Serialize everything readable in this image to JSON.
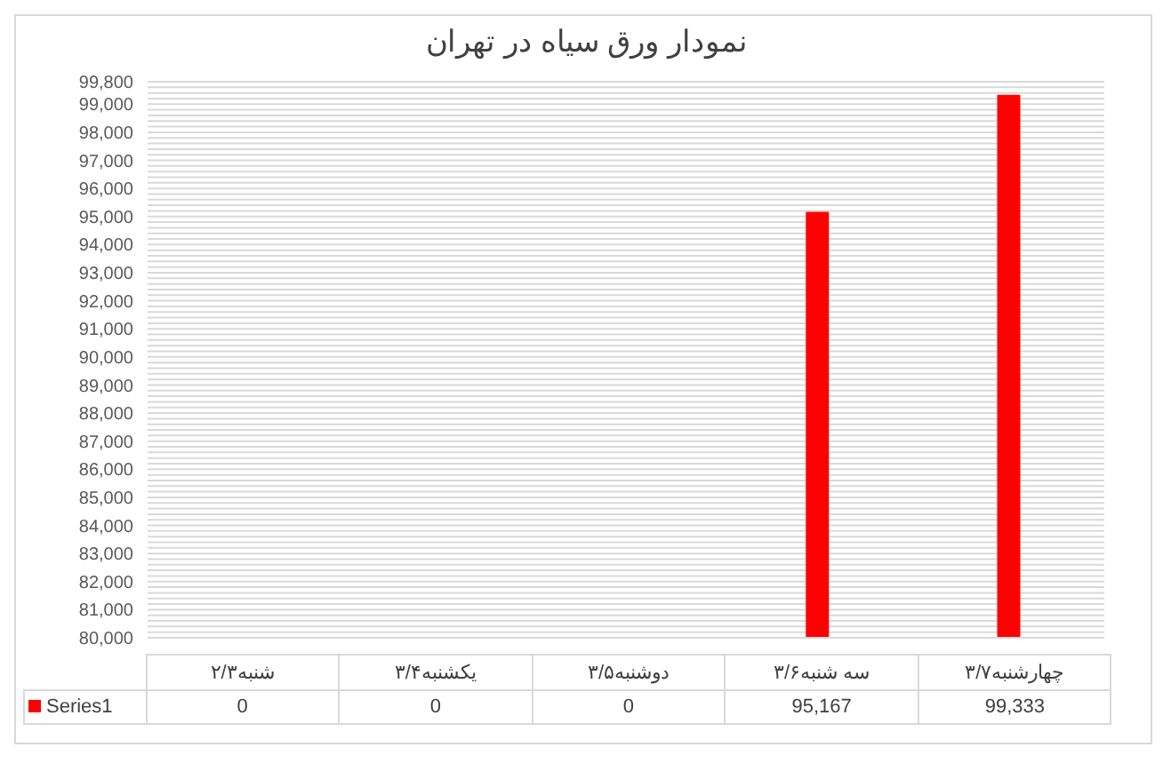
{
  "chart_data": {
    "type": "bar",
    "title": "نمودار ورق سیاه در تهران",
    "categories": [
      "شنبه۲/۳",
      "یکشنبه۳/۴",
      "دوشنبه۳/۵",
      "سه شنبه۳/۶",
      "چهارشنبه۳/۷"
    ],
    "series": [
      {
        "name": "Series1",
        "color": "#ff0000",
        "values": [
          null,
          null,
          null,
          95167,
          99333
        ],
        "value_labels": [
          "0",
          "0",
          "0",
          "95,167",
          "99,333"
        ]
      }
    ],
    "ylim": [
      80000,
      99800
    ],
    "yticks": [
      {
        "value": 80000,
        "label": "80,000"
      },
      {
        "value": 80200,
        "label": null
      },
      {
        "value": 80400,
        "label": null
      },
      {
        "value": 80600,
        "label": null
      },
      {
        "value": 80800,
        "label": null
      },
      {
        "value": 81000,
        "label": "81,000"
      },
      {
        "value": 81200,
        "label": null
      },
      {
        "value": 81400,
        "label": null
      },
      {
        "value": 81600,
        "label": null
      },
      {
        "value": 81800,
        "label": null
      },
      {
        "value": 82000,
        "label": "82,000"
      },
      {
        "value": 82200,
        "label": null
      },
      {
        "value": 82400,
        "label": null
      },
      {
        "value": 82600,
        "label": null
      },
      {
        "value": 82800,
        "label": null
      },
      {
        "value": 83000,
        "label": "83,000"
      },
      {
        "value": 83200,
        "label": null
      },
      {
        "value": 83400,
        "label": null
      },
      {
        "value": 83600,
        "label": null
      },
      {
        "value": 83800,
        "label": null
      },
      {
        "value": 84000,
        "label": "84,000"
      },
      {
        "value": 84200,
        "label": null
      },
      {
        "value": 84400,
        "label": null
      },
      {
        "value": 84600,
        "label": null
      },
      {
        "value": 84800,
        "label": null
      },
      {
        "value": 85000,
        "label": "85,000"
      },
      {
        "value": 85200,
        "label": null
      },
      {
        "value": 85400,
        "label": null
      },
      {
        "value": 85600,
        "label": null
      },
      {
        "value": 85800,
        "label": null
      },
      {
        "value": 86000,
        "label": "86,000"
      },
      {
        "value": 86200,
        "label": null
      },
      {
        "value": 86400,
        "label": null
      },
      {
        "value": 86600,
        "label": null
      },
      {
        "value": 86800,
        "label": null
      },
      {
        "value": 87000,
        "label": "87,000"
      },
      {
        "value": 87200,
        "label": null
      },
      {
        "value": 87400,
        "label": null
      },
      {
        "value": 87600,
        "label": null
      },
      {
        "value": 87800,
        "label": null
      },
      {
        "value": 88000,
        "label": "88,000"
      },
      {
        "value": 88200,
        "label": null
      },
      {
        "value": 88400,
        "label": null
      },
      {
        "value": 88600,
        "label": null
      },
      {
        "value": 88800,
        "label": null
      },
      {
        "value": 89000,
        "label": "89,000"
      },
      {
        "value": 89200,
        "label": null
      },
      {
        "value": 89400,
        "label": null
      },
      {
        "value": 89600,
        "label": null
      },
      {
        "value": 89800,
        "label": null
      },
      {
        "value": 90000,
        "label": "90,000"
      },
      {
        "value": 90200,
        "label": null
      },
      {
        "value": 90400,
        "label": null
      },
      {
        "value": 90600,
        "label": null
      },
      {
        "value": 90800,
        "label": null
      },
      {
        "value": 91000,
        "label": "91,000"
      },
      {
        "value": 91200,
        "label": null
      },
      {
        "value": 91400,
        "label": null
      },
      {
        "value": 91600,
        "label": null
      },
      {
        "value": 91800,
        "label": null
      },
      {
        "value": 92000,
        "label": "92,000"
      },
      {
        "value": 92200,
        "label": null
      },
      {
        "value": 92400,
        "label": null
      },
      {
        "value": 92600,
        "label": null
      },
      {
        "value": 92800,
        "label": null
      },
      {
        "value": 93000,
        "label": "93,000"
      },
      {
        "value": 93200,
        "label": null
      },
      {
        "value": 93400,
        "label": null
      },
      {
        "value": 93600,
        "label": null
      },
      {
        "value": 93800,
        "label": null
      },
      {
        "value": 94000,
        "label": "94,000"
      },
      {
        "value": 94200,
        "label": null
      },
      {
        "value": 94400,
        "label": null
      },
      {
        "value": 94600,
        "label": null
      },
      {
        "value": 94800,
        "label": null
      },
      {
        "value": 95000,
        "label": "95,000"
      },
      {
        "value": 95200,
        "label": null
      },
      {
        "value": 95400,
        "label": null
      },
      {
        "value": 95600,
        "label": null
      },
      {
        "value": 95800,
        "label": null
      },
      {
        "value": 96000,
        "label": "96,000"
      },
      {
        "value": 96200,
        "label": null
      },
      {
        "value": 96400,
        "label": null
      },
      {
        "value": 96600,
        "label": null
      },
      {
        "value": 96800,
        "label": null
      },
      {
        "value": 97000,
        "label": "97,000"
      },
      {
        "value": 97200,
        "label": null
      },
      {
        "value": 97400,
        "label": null
      },
      {
        "value": 97600,
        "label": null
      },
      {
        "value": 97800,
        "label": null
      },
      {
        "value": 98000,
        "label": "98,000"
      },
      {
        "value": 98200,
        "label": null
      },
      {
        "value": 98400,
        "label": null
      },
      {
        "value": 98600,
        "label": null
      },
      {
        "value": 98800,
        "label": null
      },
      {
        "value": 99000,
        "label": "99,000"
      },
      {
        "value": 99200,
        "label": null
      },
      {
        "value": 99400,
        "label": null
      },
      {
        "value": 99600,
        "label": null
      },
      {
        "value": 99800,
        "label": "99,800"
      }
    ],
    "grid": "y"
  }
}
